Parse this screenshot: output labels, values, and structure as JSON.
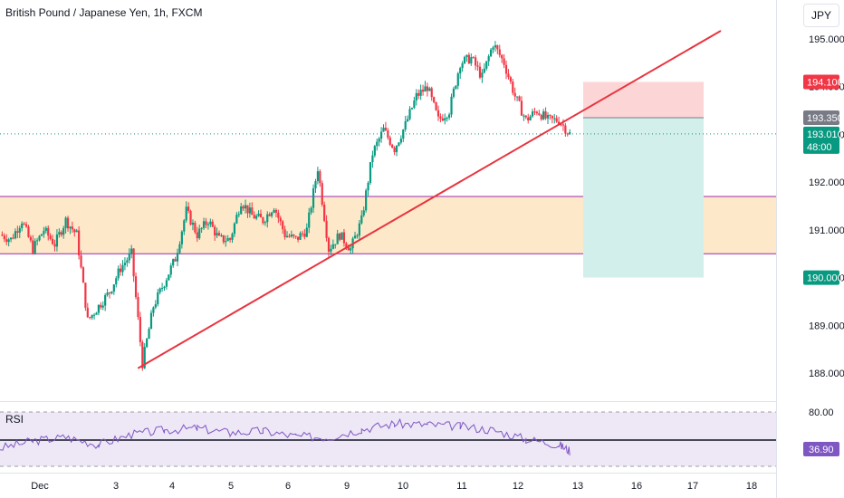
{
  "header": {
    "symbol_title": "British Pound / Japanese Yen, 1h, FXCM",
    "currency": "JPY"
  },
  "colors": {
    "up": "#089981",
    "down": "#f23645",
    "trendline": "#e8343f",
    "zone_fill": "#fde9c9",
    "zone_border": "#9c27b0",
    "stop_fill": "#fcd6d6",
    "target_fill": "#d3efeb",
    "rsi_line": "#7e57c2",
    "rsi_band": "#ede7f6",
    "current_price": "#089981"
  },
  "chart_data": [
    {
      "type": "candlestick",
      "title": "British Pound / Japanese Yen, 1h, FXCM",
      "ylim": [
        187.7,
        195.5
      ],
      "y_ticks": [
        "195.000",
        "194.000",
        "193.000",
        "192.000",
        "191.000",
        "190.000",
        "189.000",
        "188.000"
      ],
      "x_ticks": [
        "Dec",
        "3",
        "4",
        "5",
        "6",
        "9",
        "10",
        "11",
        "12",
        "13",
        "16",
        "17",
        "18"
      ],
      "price_path": [
        [
          0,
          190.9
        ],
        [
          1,
          190.8
        ],
        [
          2,
          191.2
        ],
        [
          3,
          190.6
        ],
        [
          4,
          191.0
        ],
        [
          5,
          190.7
        ],
        [
          6,
          191.2
        ],
        [
          7,
          190.9
        ],
        [
          8,
          189.1
        ],
        [
          9,
          189.4
        ],
        [
          10,
          189.7
        ],
        [
          11,
          190.2
        ],
        [
          12,
          190.5
        ],
        [
          13,
          188.2
        ],
        [
          14,
          189.4
        ],
        [
          15,
          189.9
        ],
        [
          16,
          190.4
        ],
        [
          17,
          191.4
        ],
        [
          18,
          190.9
        ],
        [
          19,
          191.2
        ],
        [
          20,
          190.8
        ],
        [
          21,
          190.8
        ],
        [
          22,
          191.6
        ],
        [
          23,
          191.3
        ],
        [
          24,
          191.2
        ],
        [
          25,
          191.5
        ],
        [
          26,
          190.9
        ],
        [
          27,
          190.8
        ],
        [
          28,
          191.0
        ],
        [
          29,
          192.3
        ],
        [
          30,
          190.6
        ],
        [
          31,
          190.9
        ],
        [
          32,
          190.6
        ],
        [
          33,
          191.2
        ],
        [
          34,
          192.6
        ],
        [
          35,
          193.1
        ],
        [
          36,
          192.7
        ],
        [
          37,
          193.2
        ],
        [
          38,
          193.8
        ],
        [
          39,
          194.0
        ],
        [
          40,
          193.3
        ],
        [
          41,
          193.5
        ],
        [
          42,
          194.5
        ],
        [
          43,
          194.6
        ],
        [
          44,
          194.2
        ],
        [
          45,
          194.9
        ],
        [
          46,
          194.5
        ],
        [
          47,
          193.8
        ],
        [
          48,
          193.3
        ],
        [
          49,
          193.5
        ],
        [
          50,
          193.3
        ],
        [
          51,
          193.3
        ],
        [
          52,
          193.01
        ]
      ],
      "support_zone": [
        190.5,
        191.7
      ],
      "trendline": {
        "start": [
          13,
          188.1
        ],
        "end": [
          64,
          195.2
        ]
      },
      "position": {
        "entry": 193.35,
        "stop": 194.1,
        "target": 190.0,
        "x_range": [
          52,
          61.5
        ]
      },
      "price_labels": {
        "stop": "194.100",
        "entry": "193.350",
        "current": "193.010",
        "countdown": "48:00",
        "target": "190.000"
      }
    },
    {
      "type": "line",
      "title": "RSI",
      "ylim": [
        20,
        80
      ],
      "levels": [
        80,
        20
      ],
      "y_ticks": [
        "80.00"
      ],
      "current_value": "36.90",
      "x": [
        0,
        3,
        6,
        9,
        12,
        15,
        18,
        21,
        24,
        27,
        30,
        33,
        36,
        39,
        42,
        45,
        48,
        51,
        52
      ],
      "values": [
        40,
        48,
        52,
        44,
        55,
        60,
        62,
        57,
        59,
        53,
        52,
        61,
        67,
        66,
        64,
        60,
        50,
        44,
        37
      ]
    }
  ]
}
